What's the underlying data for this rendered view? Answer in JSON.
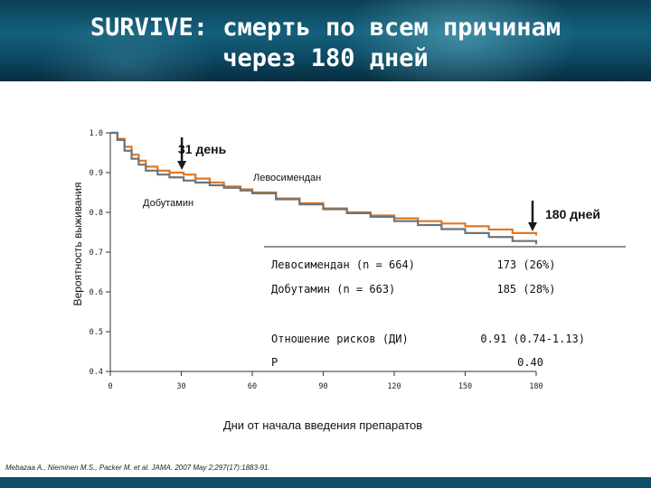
{
  "title_line1": "SURVIVE: смерть по всем причинам",
  "title_line2": "через 180 дней",
  "footnote": "Mebazaa A., Nieminen M.S., Packer M. et al. JAMA. 2007 May 2;297(17):1883-91.",
  "annotations": {
    "day31": "31 день",
    "day180": "180 дней",
    "levo_label": "Левосимендан",
    "dobu_label": "Добутамин"
  },
  "table": {
    "rows": [
      {
        "label": "Левосимендан (n = 664)",
        "value": "173 (26%)"
      },
      {
        "label": "Добутамин (n = 663)",
        "value": "185 (28%)"
      },
      {
        "label": "Отношение рисков (ДИ)",
        "value": "0.91 (0.74-1.13)"
      },
      {
        "label": "P",
        "value": "0.40"
      }
    ]
  },
  "colors": {
    "levosimendan": "#e2761f",
    "dobutamine": "#6c7478",
    "arrow": "#1a1a1a"
  },
  "chart_data": {
    "type": "line",
    "title": "",
    "xlabel": "Дни от начала введения препаратов",
    "ylabel": "Вероятность выживания",
    "xlim": [
      0,
      180
    ],
    "ylim": [
      0.4,
      1.0
    ],
    "xticks": [
      0,
      30,
      60,
      90,
      120,
      150,
      180
    ],
    "yticks": [
      0.4,
      0.5,
      0.6,
      0.7,
      0.8,
      0.9,
      1.0
    ],
    "ytick_labels": [
      "0.4",
      "0.5",
      "0.6",
      "0.7",
      "0.8",
      "0.9",
      "1.0"
    ],
    "series": [
      {
        "name": "Левосимендан",
        "x": [
          0,
          3,
          6,
          9,
          12,
          15,
          20,
          25,
          31,
          36,
          42,
          48,
          55,
          60,
          70,
          80,
          90,
          100,
          110,
          120,
          130,
          140,
          150,
          160,
          170,
          180
        ],
        "y": [
          1.0,
          0.985,
          0.965,
          0.945,
          0.93,
          0.915,
          0.905,
          0.9,
          0.895,
          0.885,
          0.875,
          0.865,
          0.858,
          0.85,
          0.835,
          0.823,
          0.81,
          0.8,
          0.792,
          0.785,
          0.778,
          0.772,
          0.765,
          0.757,
          0.748,
          0.742
        ]
      },
      {
        "name": "Добутамин",
        "x": [
          0,
          3,
          6,
          9,
          12,
          15,
          20,
          25,
          31,
          36,
          42,
          48,
          55,
          60,
          70,
          80,
          90,
          100,
          110,
          120,
          130,
          140,
          150,
          160,
          170,
          180
        ],
        "y": [
          1.0,
          0.982,
          0.955,
          0.935,
          0.92,
          0.905,
          0.895,
          0.888,
          0.88,
          0.875,
          0.868,
          0.862,
          0.855,
          0.848,
          0.833,
          0.82,
          0.808,
          0.798,
          0.789,
          0.778,
          0.768,
          0.758,
          0.748,
          0.738,
          0.728,
          0.72
        ]
      }
    ]
  }
}
